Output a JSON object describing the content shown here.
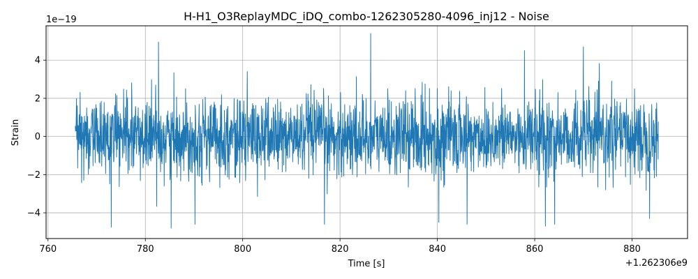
{
  "chart_data": {
    "type": "line",
    "title": "H-H1_O3ReplayMDC_iDQ_combo-1262305280-4096_inj12 - Noise",
    "xlabel": "Time [s]",
    "ylabel": "Strain",
    "x_offset_label": "+1.262306e9",
    "y_scale_label": "1e−19",
    "xlim": [
      759.6,
      891.4
    ],
    "ylim": [
      -5.35,
      5.8
    ],
    "x_ticks": [
      760,
      780,
      800,
      820,
      840,
      860,
      880
    ],
    "x_tick_labels": [
      "760",
      "780",
      "800",
      "820",
      "840",
      "860",
      "880"
    ],
    "y_ticks": [
      -4,
      -2,
      0,
      2,
      4
    ],
    "y_tick_labels": [
      "−4",
      "−2",
      "0",
      "2",
      "4"
    ],
    "grid": true,
    "series": [
      {
        "color": "#1f77b4",
        "x_start": 765.6,
        "x_end": 885.4,
        "typical_range": [
          -2.8,
          2.8
        ],
        "peaks": [
          {
            "x": 773.0,
            "y": -4.75
          },
          {
            "x": 782.7,
            "y": 4.95
          },
          {
            "x": 785.3,
            "y": -4.8
          },
          {
            "x": 790.2,
            "y": -4.6
          },
          {
            "x": 816.8,
            "y": -4.6
          },
          {
            "x": 826.3,
            "y": 5.4
          },
          {
            "x": 840.3,
            "y": -4.5
          },
          {
            "x": 846.1,
            "y": -4.6
          },
          {
            "x": 857.9,
            "y": 4.5
          },
          {
            "x": 862.2,
            "y": -4.7
          },
          {
            "x": 864.1,
            "y": -4.6
          },
          {
            "x": 870.0,
            "y": 4.7
          },
          {
            "x": 883.6,
            "y": -4.3
          }
        ]
      }
    ]
  }
}
